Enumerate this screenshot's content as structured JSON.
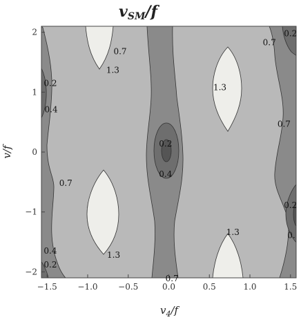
{
  "chart_data": {
    "type": "contour",
    "title": "v_SM/f",
    "title_main": "v",
    "title_sub": "SM",
    "title_tail": "/f",
    "xlabel_main": "v",
    "xlabel_sub": "4",
    "xlabel_tail": "/f",
    "ylabel": "v/f",
    "xlim": [
      -1.57,
      1.57
    ],
    "ylim": [
      -2.1,
      2.1
    ],
    "xticks": [
      {
        "value": -1.5,
        "label": "−1.5"
      },
      {
        "value": -1.0,
        "label": "−1.0"
      },
      {
        "value": -0.5,
        "label": "−0.5"
      },
      {
        "value": 0.0,
        "label": "0.0"
      },
      {
        "value": 0.5,
        "label": "0.5"
      },
      {
        "value": 1.0,
        "label": "1.0"
      },
      {
        "value": 1.5,
        "label": "1.5"
      }
    ],
    "yticks": [
      {
        "value": -2,
        "label": "−2"
      },
      {
        "value": -1,
        "label": "−1"
      },
      {
        "value": 0,
        "label": "0"
      },
      {
        "value": 1,
        "label": "1"
      },
      {
        "value": 2,
        "label": "2"
      }
    ],
    "contour_levels": [
      0.2,
      0.4,
      0.7,
      1.3
    ],
    "level_colors": [
      "#6e6e6e",
      "#8a8a8a",
      "#b9b9b9",
      "#eeeeea"
    ],
    "level_labels": [
      {
        "text": "0.7",
        "x": -0.6,
        "y": 1.68
      },
      {
        "text": "1.3",
        "x": -0.69,
        "y": 1.37
      },
      {
        "text": "0.2",
        "x": -1.46,
        "y": 1.15
      },
      {
        "text": "0.4",
        "x": -1.45,
        "y": 0.71
      },
      {
        "text": "1.3",
        "x": 0.63,
        "y": 1.08
      },
      {
        "text": "0.2",
        "x": -0.04,
        "y": 0.14
      },
      {
        "text": "0.4",
        "x": -0.04,
        "y": -0.37
      },
      {
        "text": "0.7",
        "x": -1.27,
        "y": -0.52
      },
      {
        "text": "0.7",
        "x": 1.42,
        "y": 0.47
      },
      {
        "text": "0.2",
        "x": 1.5,
        "y": 1.98
      },
      {
        "text": "0.7",
        "x": 1.24,
        "y": 1.83
      },
      {
        "text": "0.2",
        "x": 1.5,
        "y": -0.89
      },
      {
        "text": "0.",
        "x": 1.51,
        "y": -1.39
      },
      {
        "text": "1.3",
        "x": -0.68,
        "y": -1.72
      },
      {
        "text": "1.3",
        "x": 0.79,
        "y": -1.34
      },
      {
        "text": "0.4",
        "x": -1.46,
        "y": -1.65
      },
      {
        "text": "0.2",
        "x": -1.46,
        "y": -1.88
      },
      {
        "text": "0.7",
        "x": 0.04,
        "y": -2.11
      }
    ],
    "grid": false,
    "legend": "none"
  }
}
